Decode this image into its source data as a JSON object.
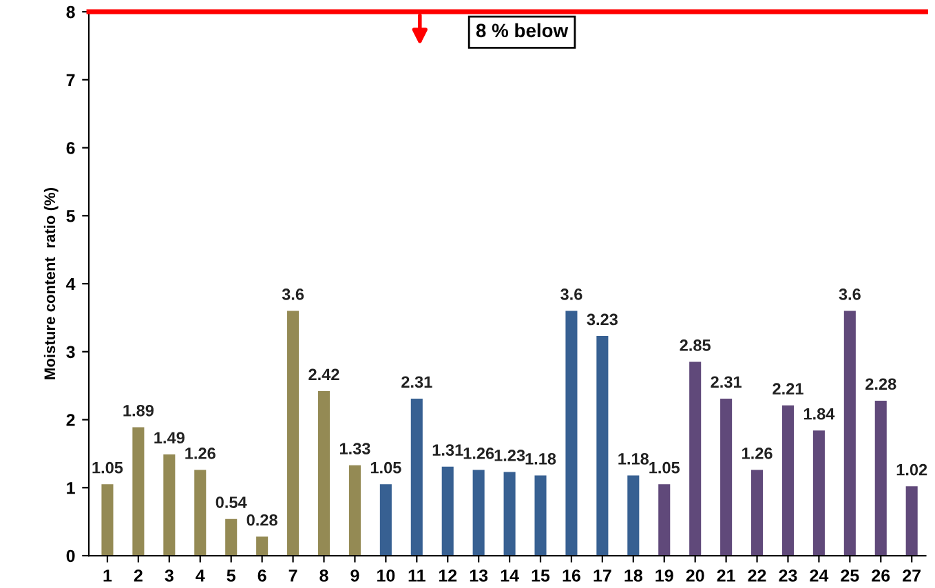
{
  "chart_data": {
    "type": "bar",
    "ylabel": "Moisture content  ratio (%)",
    "categories": [
      "1",
      "2",
      "3",
      "4",
      "5",
      "6",
      "7",
      "8",
      "9",
      "10",
      "11",
      "12",
      "13",
      "14",
      "15",
      "16",
      "17",
      "18",
      "19",
      "20",
      "21",
      "22",
      "23",
      "24",
      "25",
      "26",
      "27"
    ],
    "values": [
      1.05,
      1.89,
      1.49,
      1.26,
      0.54,
      0.28,
      3.6,
      2.42,
      1.33,
      1.05,
      2.31,
      1.31,
      1.26,
      1.23,
      1.18,
      3.6,
      3.23,
      1.18,
      1.05,
      2.85,
      2.31,
      1.26,
      2.21,
      1.84,
      3.6,
      2.28,
      1.02
    ],
    "colors": [
      "#948a54",
      "#948a54",
      "#948a54",
      "#948a54",
      "#948a54",
      "#948a54",
      "#948a54",
      "#948a54",
      "#948a54",
      "#376092",
      "#376092",
      "#376092",
      "#376092",
      "#376092",
      "#376092",
      "#376092",
      "#376092",
      "#376092",
      "#60497a",
      "#60497a",
      "#60497a",
      "#60497a",
      "#60497a",
      "#60497a",
      "#60497a",
      "#60497a",
      "#60497a"
    ],
    "ylim": [
      0,
      8
    ],
    "yticks": [
      0,
      1,
      2,
      3,
      4,
      5,
      6,
      7,
      8
    ],
    "grid": false,
    "data_labels": true,
    "ref_lines": [
      {
        "axis": "y",
        "value": 8,
        "label": "8 % below",
        "color": "#ff0000"
      }
    ]
  }
}
